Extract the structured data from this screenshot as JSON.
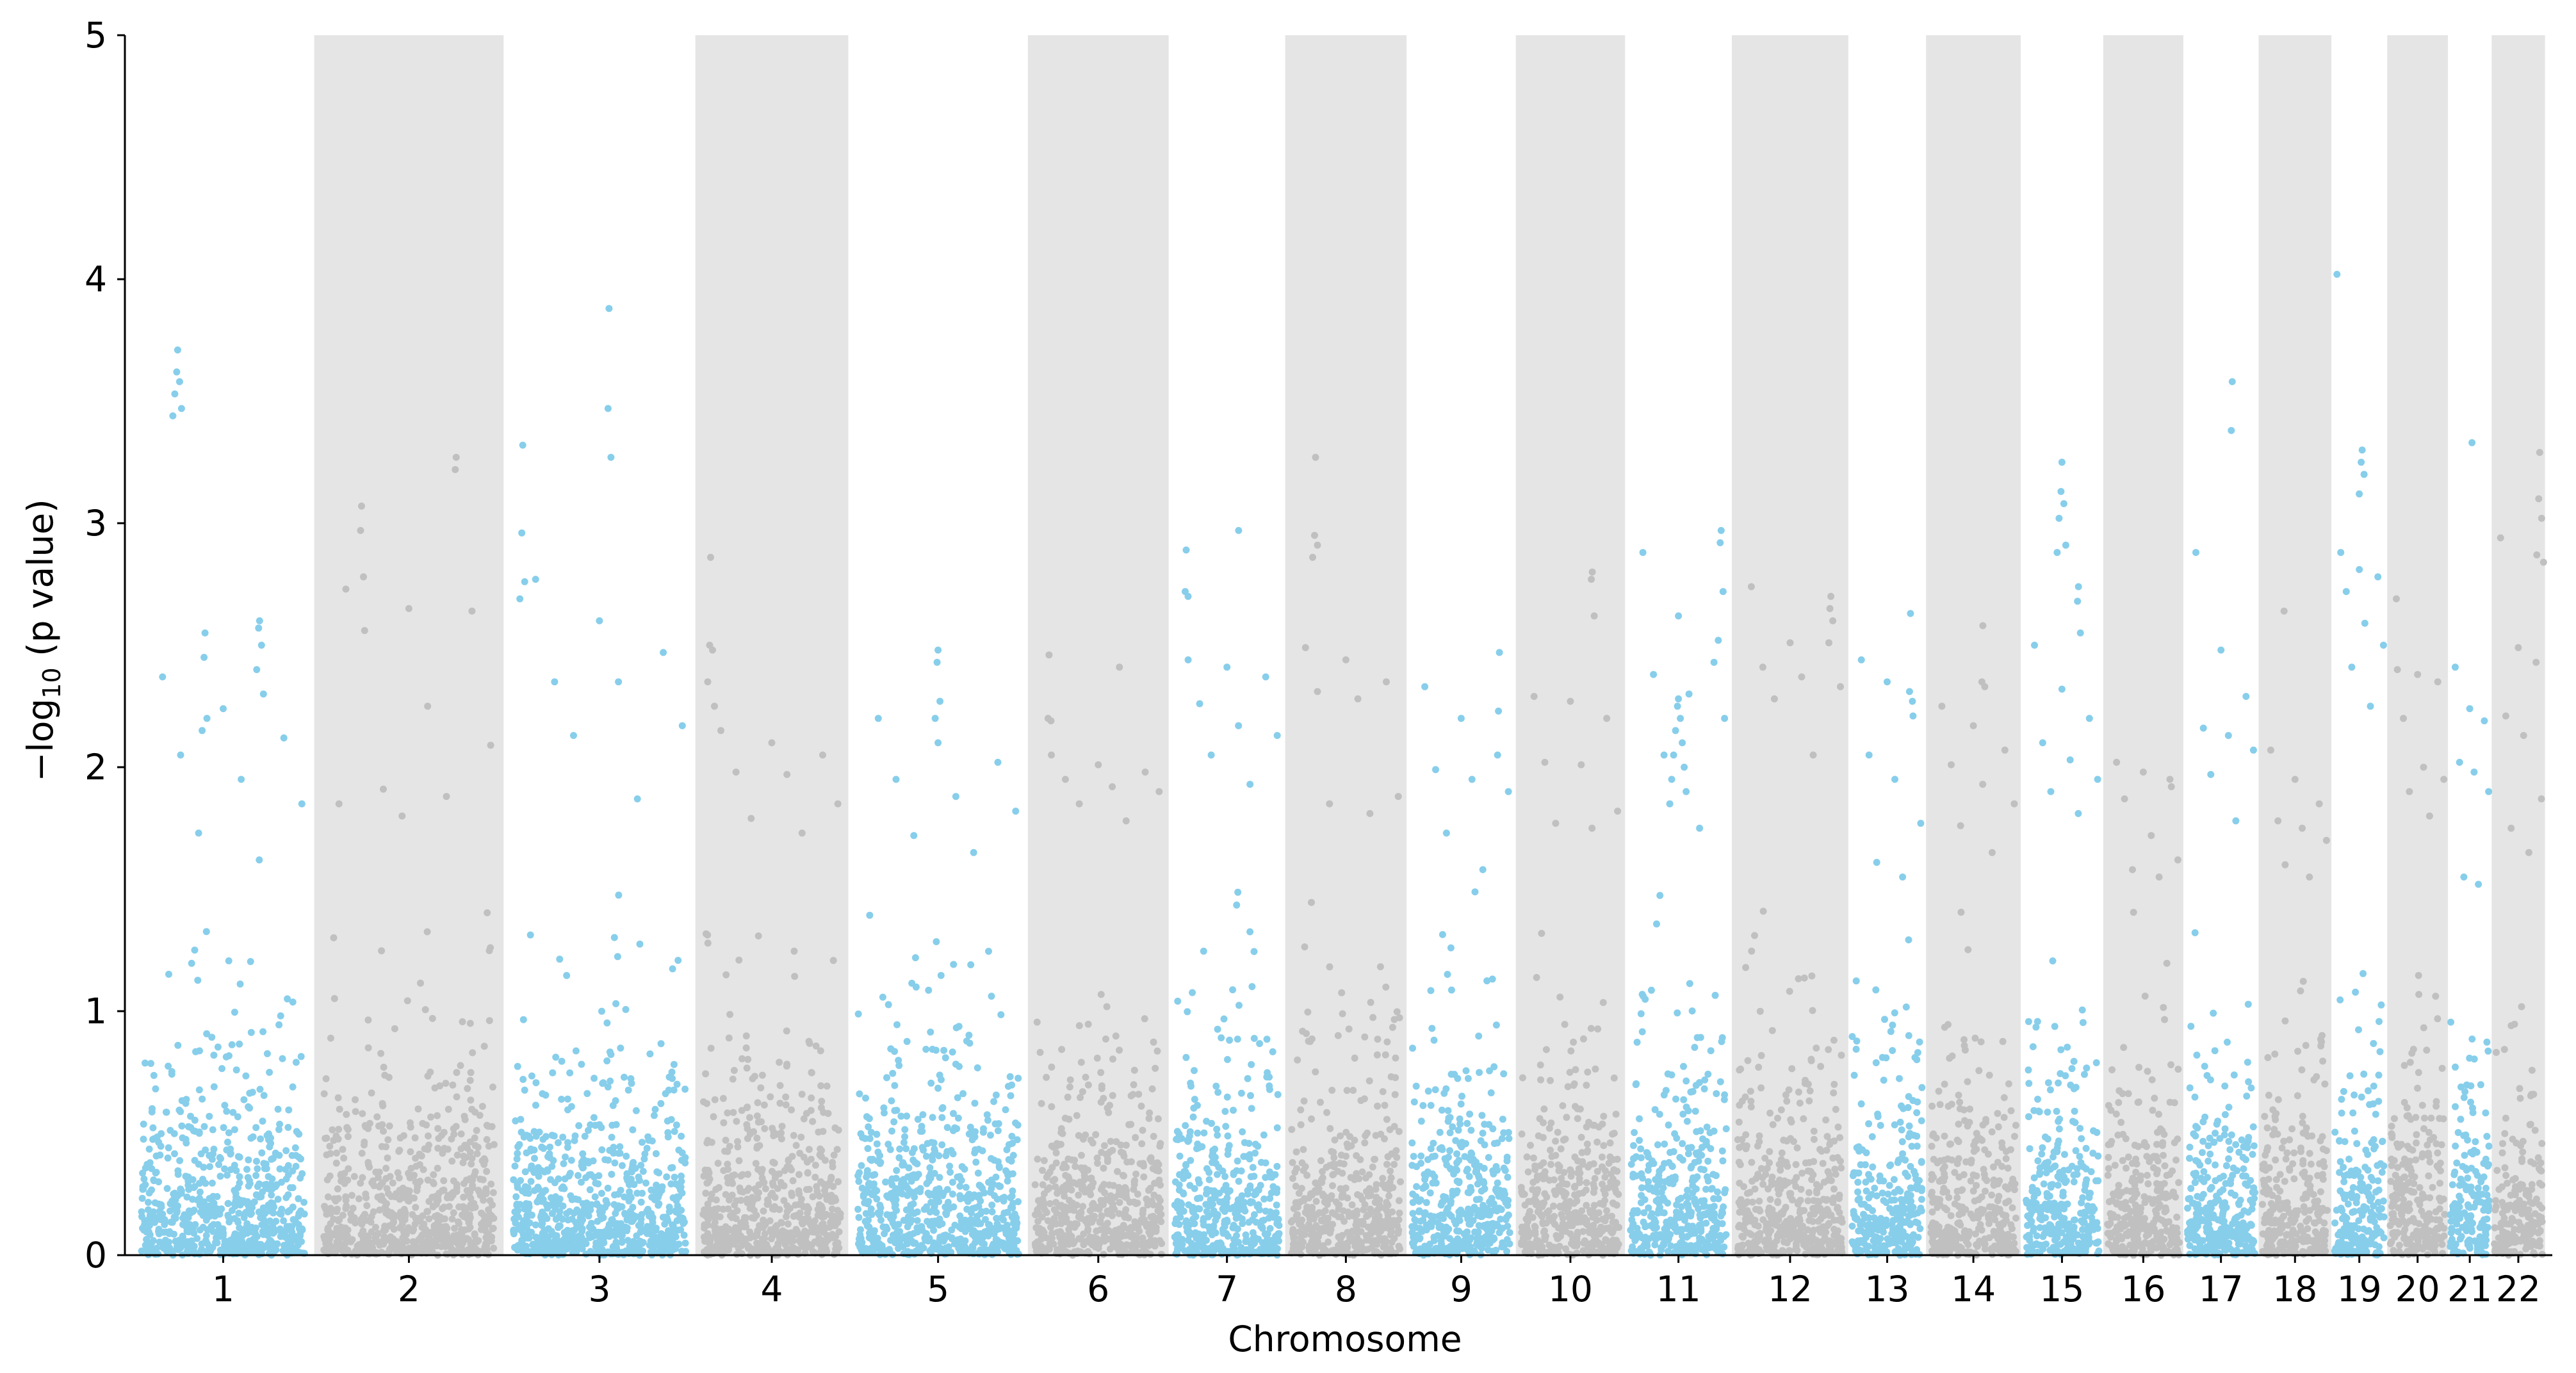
{
  "chart_data": {
    "type": "scatter",
    "subtype": "manhattan",
    "title": "",
    "xlabel": "Chromosome",
    "ylabel_prefix": "−log",
    "ylabel_sub": "10",
    "ylabel_suffix": " (p value)",
    "ylim": [
      0,
      5
    ],
    "yticks": [
      0,
      1,
      2,
      3,
      4,
      5
    ],
    "colors": {
      "odd": "#87CEEB",
      "even": "#C0C0C0",
      "band": "#E5E5E5"
    },
    "chromosomes": [
      {
        "label": "1",
        "start": 0.003,
        "end": 0.078,
        "peaks": [
          {
            "pos": 0.25,
            "vals": [
              3.71,
              3.62,
              3.58,
              3.53,
              3.47,
              3.44
            ]
          },
          {
            "pos": 0.4,
            "vals": [
              2.55,
              2.45,
              2.2,
              2.15
            ]
          },
          {
            "pos": 0.7,
            "vals": [
              2.6,
              2.57,
              2.5,
              2.4,
              2.3
            ]
          }
        ],
        "scatter": [
          2.37,
          2.24,
          2.12,
          2.05,
          1.95,
          1.85,
          1.73,
          1.62
        ]
      },
      {
        "label": "2",
        "start": 0.078,
        "end": 0.156,
        "peaks": [
          {
            "pos": 0.25,
            "vals": [
              3.07,
              2.97,
              2.78
            ]
          },
          {
            "pos": 0.75,
            "vals": [
              3.27,
              3.22
            ]
          }
        ],
        "scatter": [
          2.73,
          2.65,
          2.64,
          2.56,
          2.25,
          2.09,
          1.91,
          1.88,
          1.85,
          1.8
        ]
      },
      {
        "label": "3",
        "start": 0.156,
        "end": 0.235,
        "peaks": [
          {
            "pos": 0.1,
            "vals": [
              3.32,
              2.96,
              2.76,
              2.69
            ]
          },
          {
            "pos": 0.55,
            "vals": [
              3.88,
              3.47,
              3.27
            ]
          }
        ],
        "scatter": [
          2.77,
          2.6,
          2.47,
          2.35,
          2.35,
          2.17,
          2.13,
          1.87
        ]
      },
      {
        "label": "4",
        "start": 0.235,
        "end": 0.298,
        "peaks": [
          {
            "pos": 0.1,
            "vals": [
              2.86,
              2.5,
              2.48,
              2.35,
              2.25
            ]
          }
        ],
        "scatter": [
          2.15,
          2.1,
          2.05,
          1.98,
          1.97,
          1.85,
          1.79,
          1.73
        ]
      },
      {
        "label": "5",
        "start": 0.298,
        "end": 0.372,
        "peaks": [
          {
            "pos": 0.5,
            "vals": [
              2.48,
              2.43,
              2.27,
              2.2
            ]
          }
        ],
        "scatter": [
          2.2,
          2.1,
          2.02,
          1.95,
          1.88,
          1.82,
          1.72,
          1.65
        ]
      },
      {
        "label": "6",
        "start": 0.372,
        "end": 0.43,
        "peaks": [
          {
            "pos": 0.15,
            "vals": [
              2.46,
              2.2,
              2.19
            ]
          },
          {
            "pos": 0.65,
            "vals": [
              2.41
            ]
          }
        ],
        "scatter": [
          2.05,
          2.01,
          1.98,
          1.95,
          1.92,
          1.9,
          1.85,
          1.78
        ]
      },
      {
        "label": "7",
        "start": 0.43,
        "end": 0.478,
        "peaks": [
          {
            "pos": 0.15,
            "vals": [
              2.89,
              2.72,
              2.7
            ]
          },
          {
            "pos": 0.6,
            "vals": [
              2.97
            ]
          }
        ],
        "scatter": [
          2.44,
          2.41,
          2.37,
          2.26,
          2.17,
          2.13,
          2.05,
          1.93
        ]
      },
      {
        "label": "8",
        "start": 0.478,
        "end": 0.528,
        "peaks": [
          {
            "pos": 0.25,
            "vals": [
              3.27,
              2.95,
              2.91,
              2.86
            ]
          }
        ],
        "scatter": [
          2.49,
          2.44,
          2.35,
          2.31,
          2.28,
          1.88,
          1.85,
          1.81
        ]
      },
      {
        "label": "9",
        "start": 0.528,
        "end": 0.573,
        "peaks": [
          {
            "pos": 0.85,
            "vals": [
              2.47,
              2.23
            ]
          }
        ],
        "scatter": [
          2.33,
          2.2,
          2.05,
          1.99,
          1.95,
          1.9,
          1.73,
          1.58
        ]
      },
      {
        "label": "10",
        "start": 0.573,
        "end": 0.618,
        "peaks": [
          {
            "pos": 0.7,
            "vals": [
              2.8,
              2.77,
              2.62
            ]
          }
        ],
        "scatter": [
          2.29,
          2.27,
          2.2,
          2.02,
          2.01,
          1.82,
          1.77,
          1.75
        ]
      },
      {
        "label": "11",
        "start": 0.618,
        "end": 0.662,
        "peaks": [
          {
            "pos": 0.5,
            "vals": [
              2.28,
              2.25,
              2.2,
              2.15,
              2.1,
              2.05,
              2.0,
              1.95,
              1.9,
              1.85
            ]
          },
          {
            "pos": 0.9,
            "vals": [
              2.97,
              2.92,
              2.72,
              2.52
            ]
          }
        ],
        "scatter": [
          2.88,
          2.62,
          2.43,
          2.38,
          2.3,
          2.2,
          2.05,
          1.75
        ]
      },
      {
        "label": "12",
        "start": 0.662,
        "end": 0.71,
        "peaks": [
          {
            "pos": 0.85,
            "vals": [
              2.7,
              2.65,
              2.6
            ]
          }
        ],
        "scatter": [
          2.74,
          2.51,
          2.51,
          2.41,
          2.37,
          2.33,
          2.28,
          2.05
        ]
      },
      {
        "label": "13",
        "start": 0.71,
        "end": 0.742,
        "peaks": [
          {
            "pos": 0.8,
            "vals": [
              2.63,
              2.31,
              2.27
            ]
          }
        ],
        "scatter": [
          2.44,
          2.35,
          2.21,
          2.05,
          1.95,
          1.77,
          1.61,
          1.55
        ]
      },
      {
        "label": "14",
        "start": 0.742,
        "end": 0.781,
        "peaks": [
          {
            "pos": 0.6,
            "vals": [
              2.58,
              2.35,
              2.33
            ]
          }
        ],
        "scatter": [
          2.25,
          2.17,
          2.07,
          2.01,
          1.93,
          1.85,
          1.76,
          1.65
        ]
      },
      {
        "label": "15",
        "start": 0.781,
        "end": 0.815,
        "peaks": [
          {
            "pos": 0.5,
            "vals": [
              3.25,
              3.13,
              3.08,
              3.02,
              2.91,
              2.88
            ]
          },
          {
            "pos": 0.7,
            "vals": [
              2.74,
              2.68,
              2.55
            ]
          }
        ],
        "scatter": [
          2.5,
          2.32,
          2.2,
          2.1,
          2.03,
          1.95,
          1.9,
          1.81
        ]
      },
      {
        "label": "16",
        "start": 0.815,
        "end": 0.848,
        "peaks": [
          {
            "pos": 0.85,
            "vals": [
              1.92
            ]
          }
        ],
        "scatter": [
          2.02,
          1.98,
          1.95,
          1.87,
          1.72,
          1.62,
          1.58,
          1.55
        ]
      },
      {
        "label": "17",
        "start": 0.848,
        "end": 0.879,
        "peaks": [
          {
            "pos": 0.65,
            "vals": [
              3.58,
              3.38
            ]
          }
        ],
        "scatter": [
          2.88,
          2.48,
          2.29,
          2.16,
          2.13,
          2.07,
          1.97,
          1.78
        ]
      },
      {
        "label": "18",
        "start": 0.879,
        "end": 0.909,
        "peaks": [
          {
            "pos": 0.35,
            "vals": [
              2.64
            ]
          }
        ],
        "scatter": [
          2.07,
          1.95,
          1.85,
          1.78,
          1.75,
          1.7,
          1.6,
          1.55
        ]
      },
      {
        "label": "19",
        "start": 0.909,
        "end": 0.932,
        "peaks": [
          {
            "pos": 0.1,
            "vals": [
              4.02
            ]
          },
          {
            "pos": 0.55,
            "vals": [
              3.3,
              3.25,
              3.2,
              3.12
            ]
          }
        ],
        "scatter": [
          2.88,
          2.81,
          2.78,
          2.72,
          2.59,
          2.5,
          2.41,
          2.25
        ]
      },
      {
        "label": "20",
        "start": 0.932,
        "end": 0.957,
        "peaks": [
          {
            "pos": 0.15,
            "vals": [
              2.69
            ]
          }
        ],
        "scatter": [
          2.4,
          2.38,
          2.35,
          2.2,
          2.0,
          1.95,
          1.9,
          1.8
        ]
      },
      {
        "label": "21",
        "start": 0.957,
        "end": 0.975,
        "peaks": [
          {
            "pos": 0.55,
            "vals": [
              3.33
            ]
          }
        ],
        "scatter": [
          2.41,
          2.24,
          2.19,
          2.02,
          1.98,
          1.9,
          1.55,
          1.52
        ]
      },
      {
        "label": "22",
        "start": 0.975,
        "end": 0.997,
        "peaks": [
          {
            "pos": 0.9,
            "vals": [
              3.29,
              3.1,
              3.02,
              2.87,
              2.84
            ]
          }
        ],
        "scatter": [
          2.94,
          2.49,
          2.43,
          2.21,
          2.13,
          1.87,
          1.75,
          1.65
        ]
      }
    ]
  }
}
